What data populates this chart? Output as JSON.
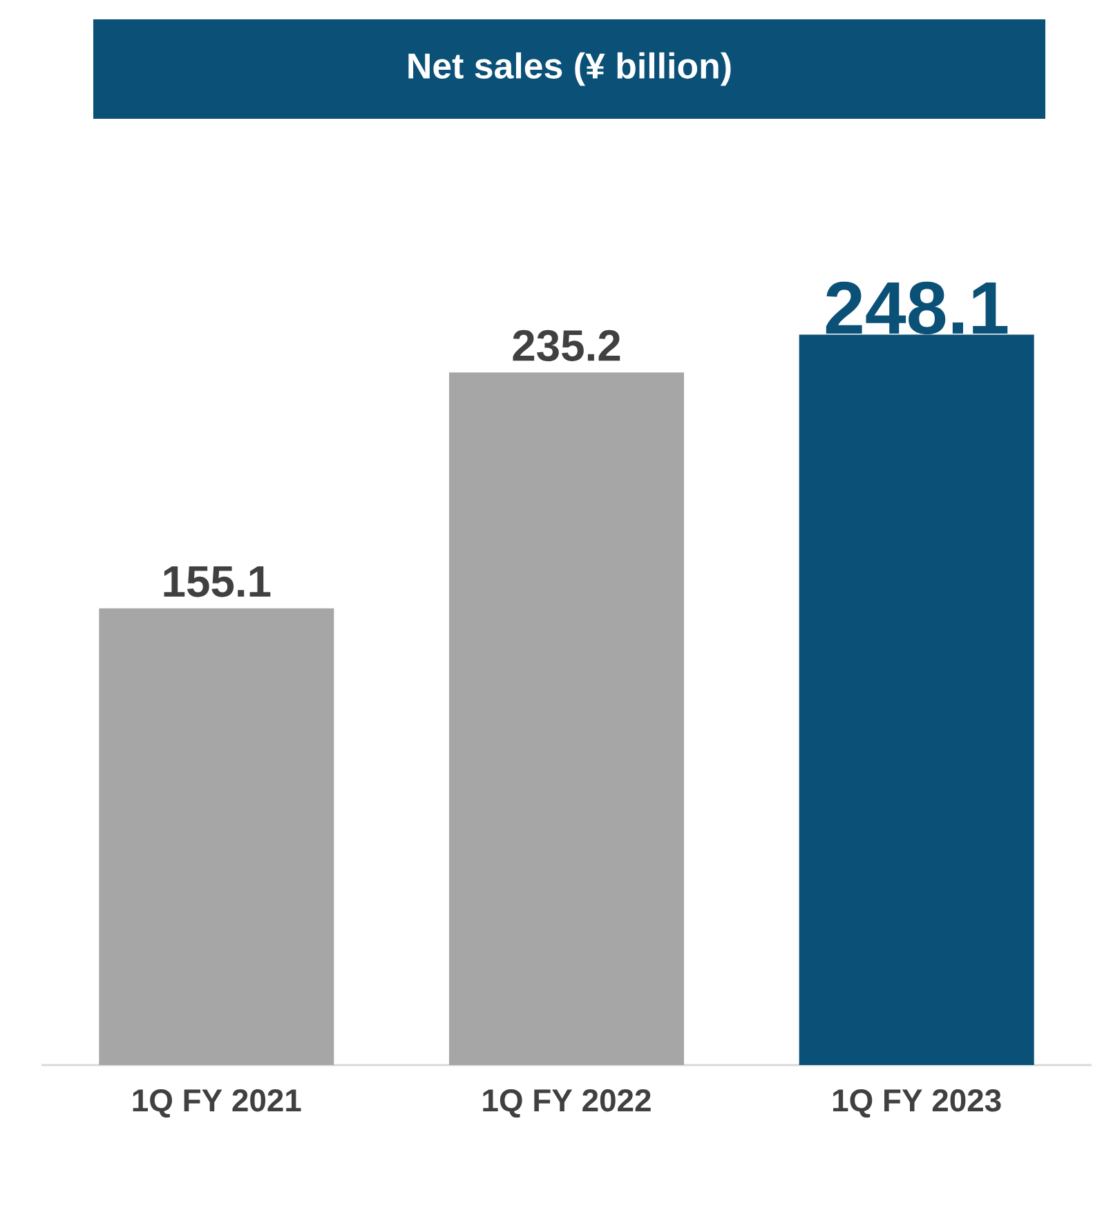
{
  "chart_data": {
    "type": "bar",
    "title": "Net sales (¥ billion)",
    "categories": [
      "1Q FY 2021",
      "1Q FY 2022",
      "1Q FY 2023"
    ],
    "values": [
      155.1,
      235.2,
      248.1
    ],
    "colors": [
      "#a6a6a6",
      "#a6a6a6",
      "#0b5177"
    ],
    "data_labels": true
  }
}
